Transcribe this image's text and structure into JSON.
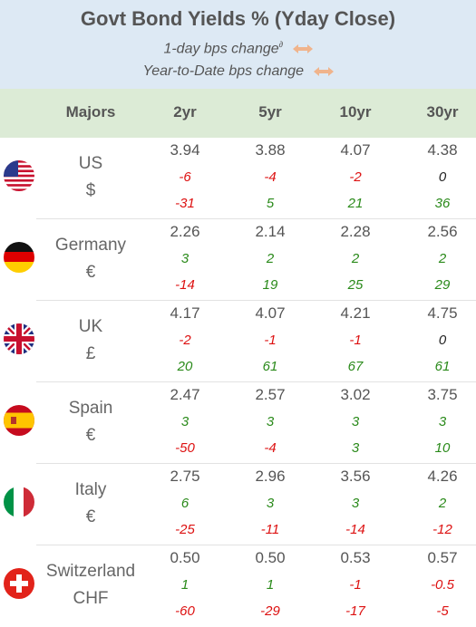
{
  "header": {
    "title": "Govt Bond Yields %  (Yday Close)",
    "subtitle1": "1-day bps change",
    "subtitle1_sup": "∂",
    "subtitle2": "Year-to-Date bps change",
    "arrow_color": "#f0b48c"
  },
  "columns": {
    "majors": "Majors",
    "c2": "2yr",
    "c5": "5yr",
    "c10": "10yr",
    "c30": "30yr"
  },
  "rows": [
    {
      "name": "US",
      "currency": "$",
      "flag": "us-flag",
      "yields": [
        "3.94",
        "3.88",
        "4.07",
        "4.38"
      ],
      "day": [
        "-6",
        "-4",
        "-2",
        "0"
      ],
      "ytd": [
        "-31",
        "5",
        "21",
        "36"
      ]
    },
    {
      "name": "Germany",
      "currency": "€",
      "flag": "germany-flag",
      "yields": [
        "2.26",
        "2.14",
        "2.28",
        "2.56"
      ],
      "day": [
        "3",
        "2",
        "2",
        "2"
      ],
      "ytd": [
        "-14",
        "19",
        "25",
        "29"
      ]
    },
    {
      "name": "UK",
      "currency": "£",
      "flag": "uk-flag",
      "yields": [
        "4.17",
        "4.07",
        "4.21",
        "4.75"
      ],
      "day": [
        "-2",
        "-1",
        "-1",
        "0"
      ],
      "ytd": [
        "20",
        "61",
        "67",
        "61"
      ]
    },
    {
      "name": "Spain",
      "currency": "€",
      "flag": "spain-flag",
      "yields": [
        "2.47",
        "2.57",
        "3.02",
        "3.75"
      ],
      "day": [
        "3",
        "3",
        "3",
        "3"
      ],
      "ytd": [
        "-50",
        "-4",
        "3",
        "10"
      ]
    },
    {
      "name": "Italy",
      "currency": "€",
      "flag": "italy-flag",
      "yields": [
        "2.75",
        "2.96",
        "3.56",
        "4.26"
      ],
      "day": [
        "6",
        "3",
        "3",
        "2"
      ],
      "ytd": [
        "-25",
        "-11",
        "-14",
        "-12"
      ]
    },
    {
      "name": "Switzerland",
      "currency": "CHF",
      "flag": "switzerland-flag",
      "yields": [
        "0.50",
        "0.50",
        "0.53",
        "0.57"
      ],
      "day": [
        "1",
        "1",
        "-1",
        "-0.5"
      ],
      "ytd": [
        "-60",
        "-29",
        "-17",
        "-5"
      ]
    }
  ],
  "colors": {
    "negative": "#dd1111",
    "positive": "#2a8a1a",
    "zero": "#222222",
    "header_bg": "#dde9f4",
    "colhead_bg": "#dcebd6"
  }
}
